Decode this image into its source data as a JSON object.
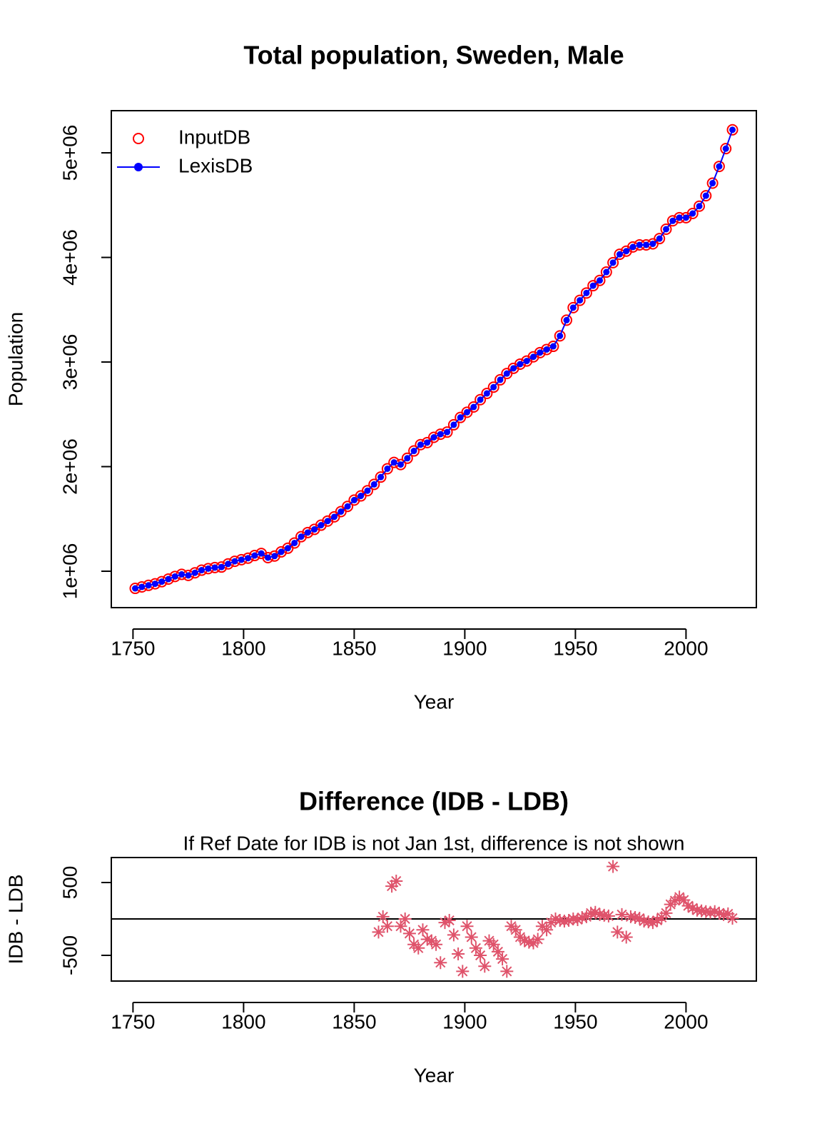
{
  "chart_data": [
    {
      "type": "line",
      "title": "Total population, Sweden, Male",
      "x_label": "Year",
      "y_label": "Population",
      "x": [
        1751,
        1754,
        1757,
        1760,
        1763,
        1766,
        1769,
        1772,
        1775,
        1778,
        1781,
        1784,
        1787,
        1790,
        1793,
        1796,
        1799,
        1802,
        1805,
        1808,
        1811,
        1814,
        1817,
        1820,
        1823,
        1826,
        1829,
        1832,
        1835,
        1838,
        1841,
        1844,
        1847,
        1850,
        1853,
        1856,
        1859,
        1862,
        1865,
        1868,
        1871,
        1874,
        1877,
        1880,
        1883,
        1886,
        1889,
        1892,
        1895,
        1898,
        1901,
        1904,
        1907,
        1910,
        1913,
        1916,
        1919,
        1922,
        1925,
        1928,
        1931,
        1934,
        1937,
        1940,
        1943,
        1946,
        1949,
        1952,
        1955,
        1958,
        1961,
        1964,
        1967,
        1970,
        1973,
        1976,
        1979,
        1982,
        1985,
        1988,
        1991,
        1994,
        1997,
        2000,
        2003,
        2006,
        2009,
        2012,
        2015,
        2018,
        2021
      ],
      "series": [
        {
          "name": "InputDB",
          "color": "#ff0000",
          "mode": "points",
          "values": [
            836000,
            850000,
            865000,
            880000,
            900000,
            925000,
            950000,
            970000,
            960000,
            985000,
            1010000,
            1025000,
            1035000,
            1040000,
            1070000,
            1095000,
            1110000,
            1125000,
            1150000,
            1170000,
            1130000,
            1145000,
            1185000,
            1220000,
            1270000,
            1330000,
            1370000,
            1400000,
            1440000,
            1480000,
            1520000,
            1570000,
            1620000,
            1680000,
            1720000,
            1770000,
            1830000,
            1900000,
            1980000,
            2040000,
            2020000,
            2080000,
            2150000,
            2210000,
            2230000,
            2280000,
            2310000,
            2330000,
            2400000,
            2470000,
            2520000,
            2570000,
            2640000,
            2700000,
            2760000,
            2830000,
            2890000,
            2940000,
            2980000,
            3010000,
            3050000,
            3090000,
            3120000,
            3150000,
            3250000,
            3400000,
            3520000,
            3590000,
            3660000,
            3730000,
            3780000,
            3860000,
            3950000,
            4030000,
            4060000,
            4100000,
            4120000,
            4120000,
            4130000,
            4180000,
            4270000,
            4350000,
            4380000,
            4380000,
            4420000,
            4490000,
            4590000,
            4710000,
            4870000,
            5040000,
            5220000
          ]
        },
        {
          "name": "LexisDB",
          "color": "#0000ff",
          "mode": "lines+points",
          "values": [
            836000,
            850000,
            865000,
            880000,
            900000,
            925000,
            950000,
            970000,
            960000,
            985000,
            1010000,
            1025000,
            1035000,
            1040000,
            1070000,
            1095000,
            1110000,
            1125000,
            1150000,
            1170000,
            1130000,
            1145000,
            1185000,
            1220000,
            1270000,
            1330000,
            1370000,
            1400000,
            1440000,
            1480000,
            1520000,
            1570000,
            1620000,
            1680000,
            1720000,
            1770000,
            1830000,
            1900000,
            1980000,
            2040000,
            2020000,
            2080000,
            2150000,
            2210000,
            2230000,
            2280000,
            2310000,
            2330000,
            2400000,
            2470000,
            2520000,
            2570000,
            2640000,
            2700000,
            2760000,
            2830000,
            2890000,
            2940000,
            2980000,
            3010000,
            3050000,
            3090000,
            3120000,
            3150000,
            3250000,
            3400000,
            3520000,
            3590000,
            3660000,
            3730000,
            3780000,
            3860000,
            3950000,
            4030000,
            4060000,
            4100000,
            4120000,
            4120000,
            4130000,
            4180000,
            4270000,
            4350000,
            4380000,
            4380000,
            4420000,
            4490000,
            4590000,
            4710000,
            4870000,
            5040000,
            5220000
          ]
        }
      ],
      "xlim": [
        1740.2,
        2031.8
      ],
      "xticks": [
        1750,
        1800,
        1850,
        1900,
        1950,
        2000
      ],
      "ylim": [
        652000,
        5403000
      ],
      "yticks": [
        {
          "value": 1000000,
          "label": "1e+06"
        },
        {
          "value": 2000000,
          "label": "2e+06"
        },
        {
          "value": 3000000,
          "label": "3e+06"
        },
        {
          "value": 4000000,
          "label": "4e+06"
        },
        {
          "value": 5000000,
          "label": "5e+06"
        }
      ],
      "legend": "top-left"
    },
    {
      "type": "scatter",
      "title": "Difference (IDB - LDB)",
      "subtitle": "If Ref Date for IDB is not Jan 1st, difference is not shown",
      "x_label": "Year",
      "y_label": "IDB - LDB",
      "x": [
        1861,
        1863,
        1865,
        1867,
        1869,
        1871,
        1873,
        1875,
        1877,
        1879,
        1881,
        1883,
        1885,
        1887,
        1889,
        1891,
        1893,
        1895,
        1897,
        1899,
        1901,
        1903,
        1905,
        1907,
        1909,
        1911,
        1913,
        1915,
        1917,
        1919,
        1921,
        1923,
        1925,
        1927,
        1929,
        1931,
        1933,
        1935,
        1937,
        1939,
        1941,
        1943,
        1945,
        1947,
        1949,
        1951,
        1953,
        1955,
        1957,
        1959,
        1961,
        1963,
        1965,
        1967,
        1969,
        1971,
        1973,
        1975,
        1977,
        1979,
        1981,
        1983,
        1985,
        1987,
        1989,
        1991,
        1993,
        1995,
        1997,
        1999,
        2001,
        2003,
        2005,
        2007,
        2009,
        2011,
        2013,
        2015,
        2017,
        2019,
        2021
      ],
      "values": [
        -180,
        30,
        -100,
        450,
        520,
        -100,
        0,
        -200,
        -350,
        -400,
        -150,
        -280,
        -300,
        -350,
        -600,
        -50,
        -20,
        -220,
        -480,
        -720,
        -100,
        -250,
        -400,
        -500,
        -650,
        -300,
        -350,
        -450,
        -550,
        -720,
        -100,
        -150,
        -250,
        -300,
        -320,
        -330,
        -280,
        -100,
        -150,
        -50,
        0,
        -20,
        -30,
        -20,
        0,
        -10,
        20,
        30,
        80,
        90,
        60,
        50,
        40,
        720,
        -180,
        60,
        -250,
        30,
        20,
        10,
        -30,
        -40,
        -50,
        -20,
        20,
        80,
        200,
        250,
        300,
        260,
        180,
        150,
        120,
        110,
        100,
        90,
        100,
        80,
        60,
        70,
        10
      ],
      "color": "#df536b",
      "marker": "asterisk",
      "hline": 0,
      "xlim": [
        1740.2,
        2031.8
      ],
      "xticks": [
        1750,
        1800,
        1850,
        1900,
        1950,
        2000
      ],
      "ylim": [
        -853,
        843
      ],
      "yticks": [
        -500,
        500
      ]
    }
  ]
}
